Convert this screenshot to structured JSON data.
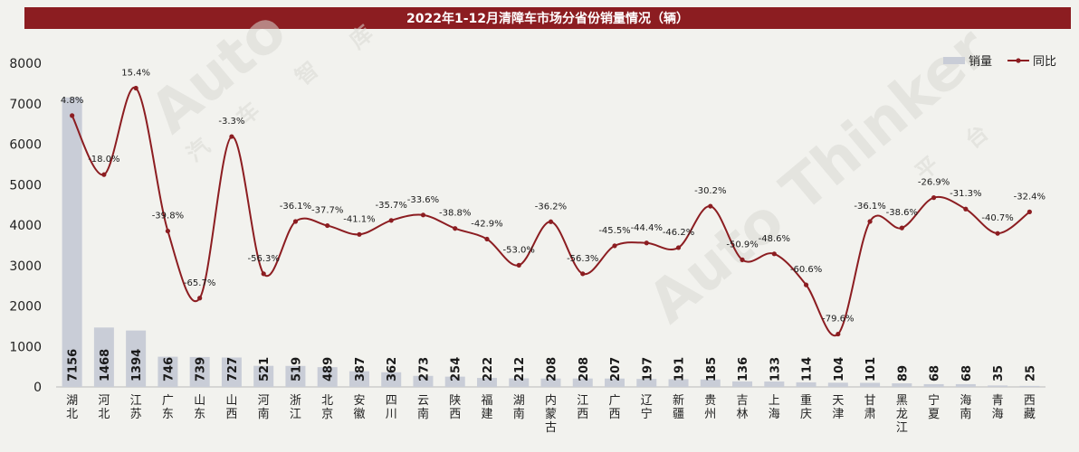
{
  "title": "2022年1-12月清障车市场分省份销量情况（辆）",
  "colors": {
    "bar": "#c9cdd7",
    "line": "#8c1d21",
    "title_bg": "#8c1d21",
    "background": "#f2f2ee"
  },
  "chart_data": {
    "type": "bar",
    "title": "2022年1-12月清障车市场分省份销量情况（辆）",
    "categories": [
      "湖北",
      "河北",
      "江苏",
      "广东",
      "山东",
      "山西",
      "河南",
      "浙江",
      "北京",
      "安徽",
      "四川",
      "云南",
      "陕西",
      "福建",
      "湖南",
      "内蒙古",
      "江西",
      "广西",
      "辽宁",
      "新疆",
      "贵州",
      "吉林",
      "上海",
      "重庆",
      "天津",
      "甘肃",
      "黑龙江",
      "宁夏",
      "海南",
      "青海",
      "西藏"
    ],
    "series": [
      {
        "name": "销量",
        "type": "bar",
        "values": [
          7156,
          1468,
          1394,
          746,
          739,
          727,
          521,
          519,
          489,
          387,
          362,
          273,
          254,
          222,
          212,
          208,
          208,
          207,
          197,
          191,
          185,
          136,
          133,
          114,
          104,
          101,
          89,
          68,
          68,
          35,
          25
        ]
      },
      {
        "name": "同比",
        "type": "line",
        "labels": [
          "4.8%",
          "-18.0%",
          "15.4%",
          "-39.8%",
          "-65.7%",
          "-3.3%",
          "-56.3%",
          "-36.1%",
          "-37.7%",
          "-41.1%",
          "-35.7%",
          "-33.6%",
          "-38.8%",
          "-42.9%",
          "-53.0%",
          "-36.2%",
          "-56.3%",
          "-45.5%",
          "-44.4%",
          "-46.2%",
          "-30.2%",
          "-50.9%",
          "-48.6%",
          "-60.6%",
          "-79.6%",
          "-36.1%",
          "-38.6%",
          "-26.9%",
          "-31.3%",
          "-40.7%",
          "-32.4%"
        ],
        "values": [
          4.8,
          -18.0,
          15.4,
          -39.8,
          -65.7,
          -3.3,
          -56.3,
          -36.1,
          -37.7,
          -41.1,
          -35.7,
          -33.6,
          -38.8,
          -42.9,
          -53.0,
          -36.2,
          -56.3,
          -45.5,
          -44.4,
          -46.2,
          -30.2,
          -50.9,
          -48.6,
          -60.6,
          -79.6,
          -36.1,
          -38.6,
          -26.9,
          -31.3,
          -40.7,
          -32.4
        ]
      }
    ],
    "yticks": [
      0,
      1000,
      2000,
      3000,
      4000,
      5000,
      6000,
      7000,
      8000
    ],
    "ylim": [
      0,
      8000
    ],
    "legend": {
      "position": "top-right",
      "items": [
        "销量",
        "同比"
      ]
    },
    "grid": false
  },
  "watermark": {
    "brand": "Auto Thinker",
    "cn": [
      "汽",
      "车",
      "智",
      "库",
      "平",
      "台"
    ]
  }
}
